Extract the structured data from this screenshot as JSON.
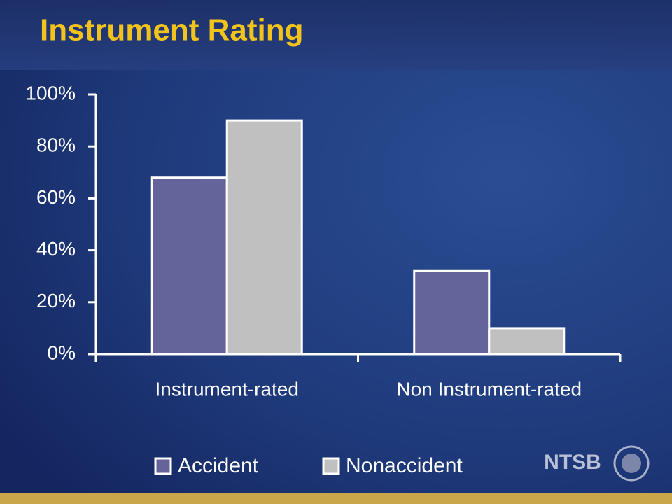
{
  "chart_data": {
    "type": "bar",
    "title": "Instrument Rating",
    "categories": [
      "Instrument-rated",
      "Non Instrument-rated"
    ],
    "series": [
      {
        "name": "Accident",
        "color": "#64649a",
        "values": [
          68,
          32
        ]
      },
      {
        "name": "Nonaccident",
        "color": "#c0c0c0",
        "values": [
          90,
          10
        ]
      }
    ],
    "ylim": [
      0,
      100
    ],
    "yticks": [
      {
        "value": 0,
        "label": "0%"
      },
      {
        "value": 20,
        "label": "20%"
      },
      {
        "value": 40,
        "label": "40%"
      },
      {
        "value": 60,
        "label": "60%"
      },
      {
        "value": 80,
        "label": "80%"
      },
      {
        "value": 100,
        "label": "100%"
      }
    ],
    "grid": false,
    "legend": "bottom"
  },
  "logo": "NTSB"
}
